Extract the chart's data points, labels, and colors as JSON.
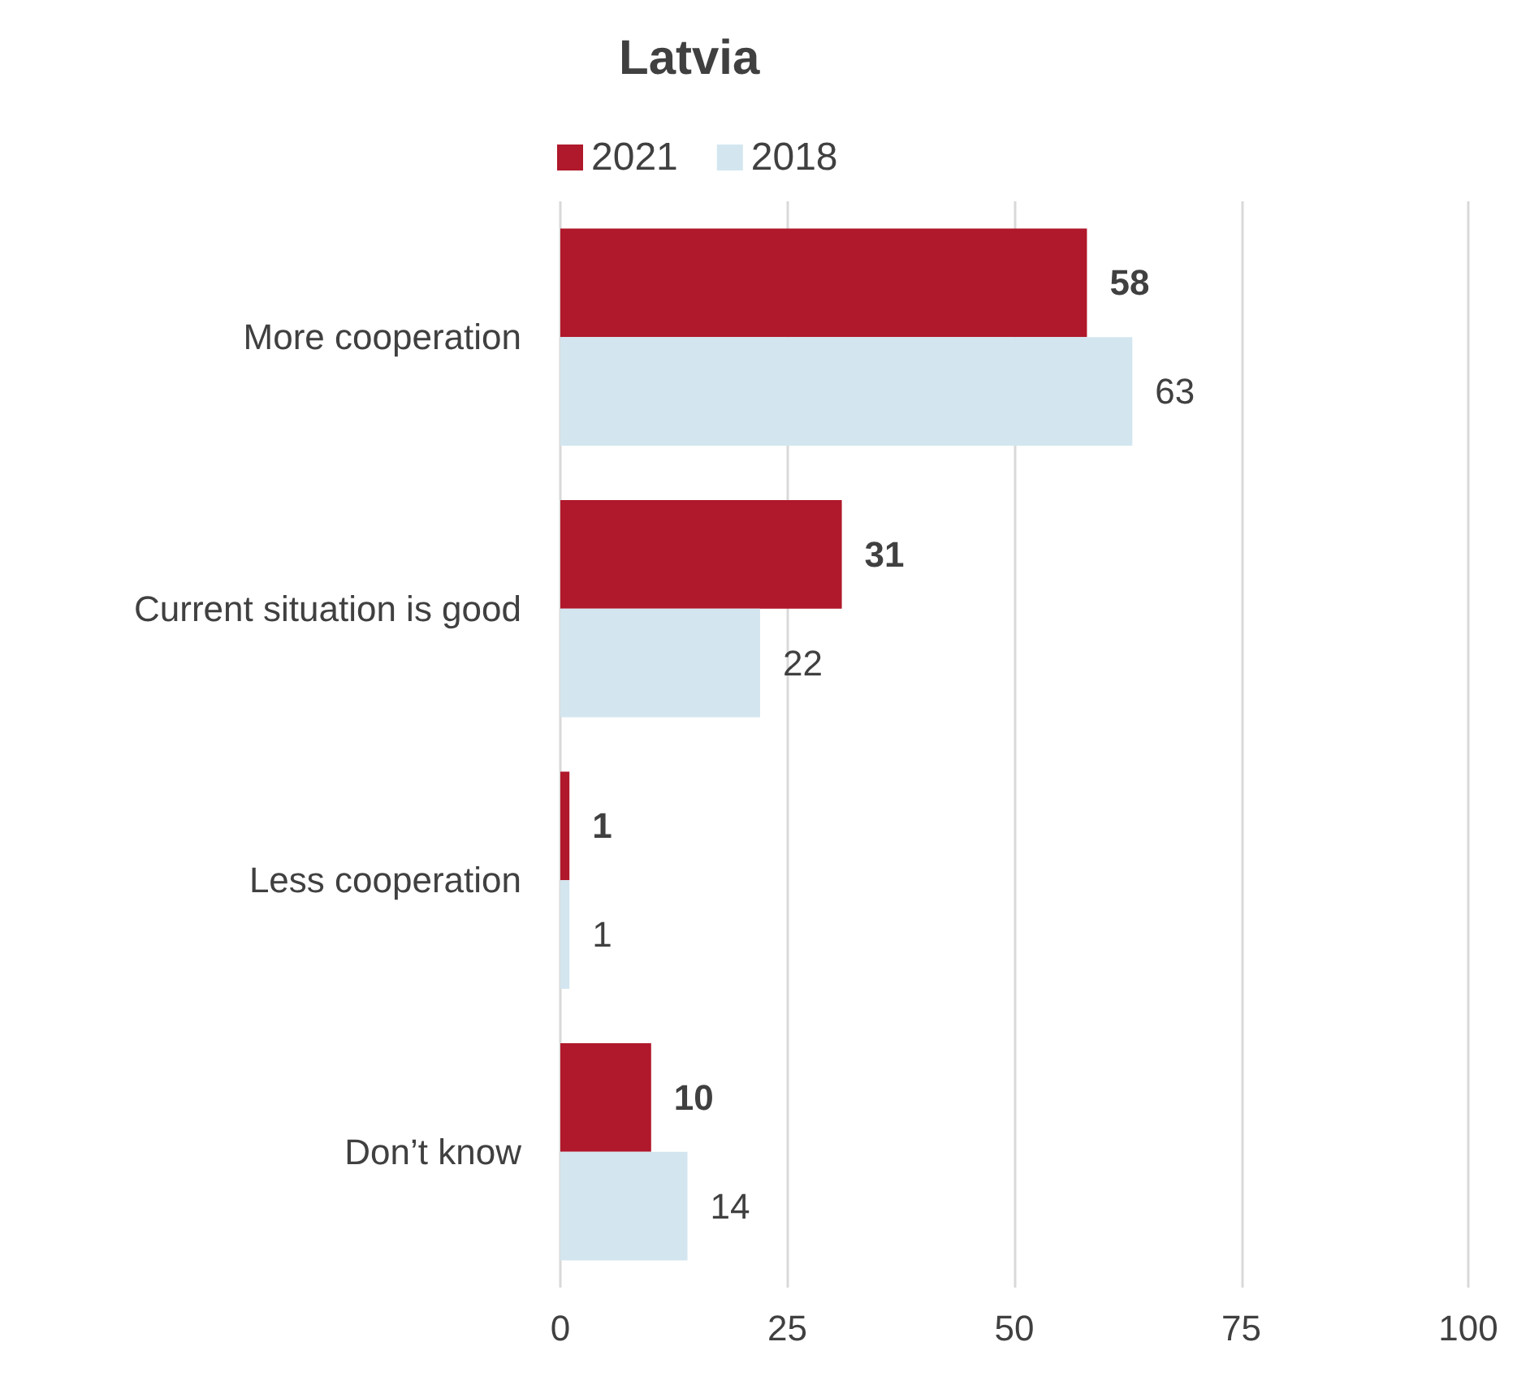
{
  "chart_data": {
    "type": "bar",
    "title": "Latvia",
    "orientation": "horizontal",
    "categories": [
      "More cooperation",
      "Current situation is good",
      "Less cooperation",
      "Don’t know"
    ],
    "series": [
      {
        "name": "2021",
        "color": "#b0182b",
        "values": [
          58,
          31,
          1,
          10
        ]
      },
      {
        "name": "2018",
        "color": "#d3e6f0",
        "values": [
          63,
          22,
          1,
          14
        ]
      }
    ],
    "xlim": [
      0,
      100
    ],
    "xticks": [
      0,
      25,
      50,
      75,
      100
    ],
    "grid": "x",
    "legend": "top",
    "data_labels": true
  }
}
